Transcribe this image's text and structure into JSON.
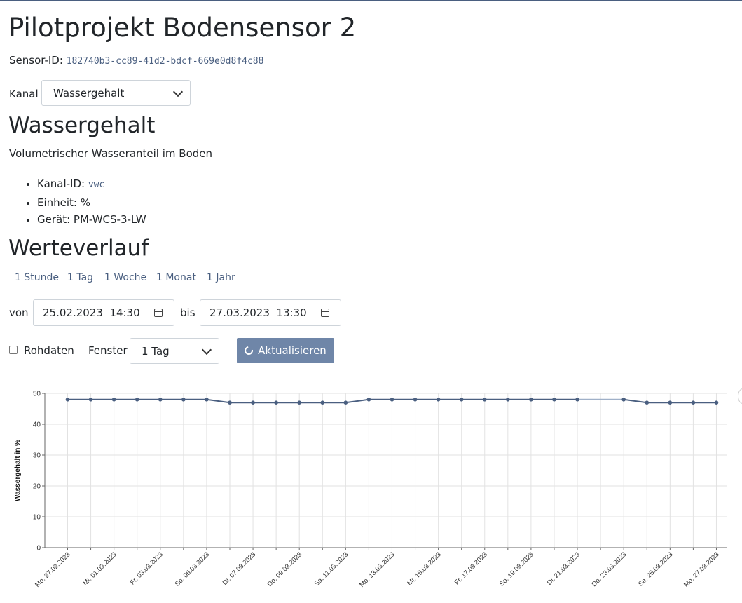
{
  "page": {
    "title": "Pilotprojekt Bodensensor 2",
    "sensor_id_label": "Sensor-ID:",
    "sensor_id": "182740b3-cc89-41d2-bdcf-669e0d8f4c88"
  },
  "channel_select": {
    "label": "Kanal",
    "value": "Wassergehalt"
  },
  "channel": {
    "heading": "Wassergehalt",
    "description": "Volumetrischer Wasseranteil im Boden",
    "props": {
      "id_label": "Kanal-ID:",
      "id": "vwc",
      "unit": "Einheit: %",
      "device": "Gerät: PM-WCS-3-LW"
    }
  },
  "history": {
    "heading": "Werteverlauf",
    "ranges": [
      "1 Stunde",
      "1 Tag",
      "1 Woche",
      "1 Monat",
      "1 Jahr"
    ],
    "from_label": "von",
    "from_value": "25.02.2023  14:30",
    "to_label": "bis",
    "to_value": "27.03.2023  13:30",
    "raw_label": "Rohdaten",
    "window_label": "Fenster",
    "window_value": "1 Tag",
    "refresh_label": "Aktualisieren"
  },
  "icons": {
    "calendar": "calendar-icon",
    "refresh": "refresh-icon",
    "dropdown": "chevron-down-icon"
  },
  "colors": {
    "accent": "#4a5f80",
    "button": "#6f86a8",
    "line": "#4a5f80"
  },
  "chart_data": {
    "type": "line",
    "ylabel": "Wassergehalt in %",
    "ylim": [
      0,
      50
    ],
    "yticks": [
      0,
      10,
      20,
      30,
      40,
      50
    ],
    "grid": true,
    "x": [
      "27.02.2023",
      "28.02.2023",
      "01.03.2023",
      "02.03.2023",
      "03.03.2023",
      "04.03.2023",
      "05.03.2023",
      "06.03.2023",
      "07.03.2023",
      "08.03.2023",
      "09.03.2023",
      "10.03.2023",
      "11.03.2023",
      "12.03.2023",
      "13.03.2023",
      "14.03.2023",
      "15.03.2023",
      "16.03.2023",
      "17.03.2023",
      "18.03.2023",
      "19.03.2023",
      "20.03.2023",
      "21.03.2023",
      "22.03.2023",
      "23.03.2023",
      "24.03.2023",
      "25.03.2023",
      "26.03.2023",
      "27.03.2023"
    ],
    "xticklabels": [
      "Mo. 27.02.2023",
      "Mi. 01.03.2023",
      "Fr. 03.03.2023",
      "So. 05.03.2023",
      "Di. 07.03.2023",
      "Do. 09.03.2023",
      "Sa. 11.03.2023",
      "Mo. 13.03.2023",
      "Mi. 15.03.2023",
      "Fr. 17.03.2023",
      "So. 19.03.2023",
      "Di. 21.03.2023",
      "Do. 23.03.2023",
      "Sa. 25.03.2023",
      "Mo. 27.03.2023"
    ],
    "series": [
      {
        "values": [
          48,
          48,
          48,
          48,
          48,
          48,
          48,
          47,
          47,
          47,
          47,
          47,
          47,
          48,
          48,
          48,
          48,
          48,
          48,
          48,
          48,
          48,
          48,
          null,
          48,
          47,
          47,
          47,
          47
        ]
      }
    ]
  }
}
